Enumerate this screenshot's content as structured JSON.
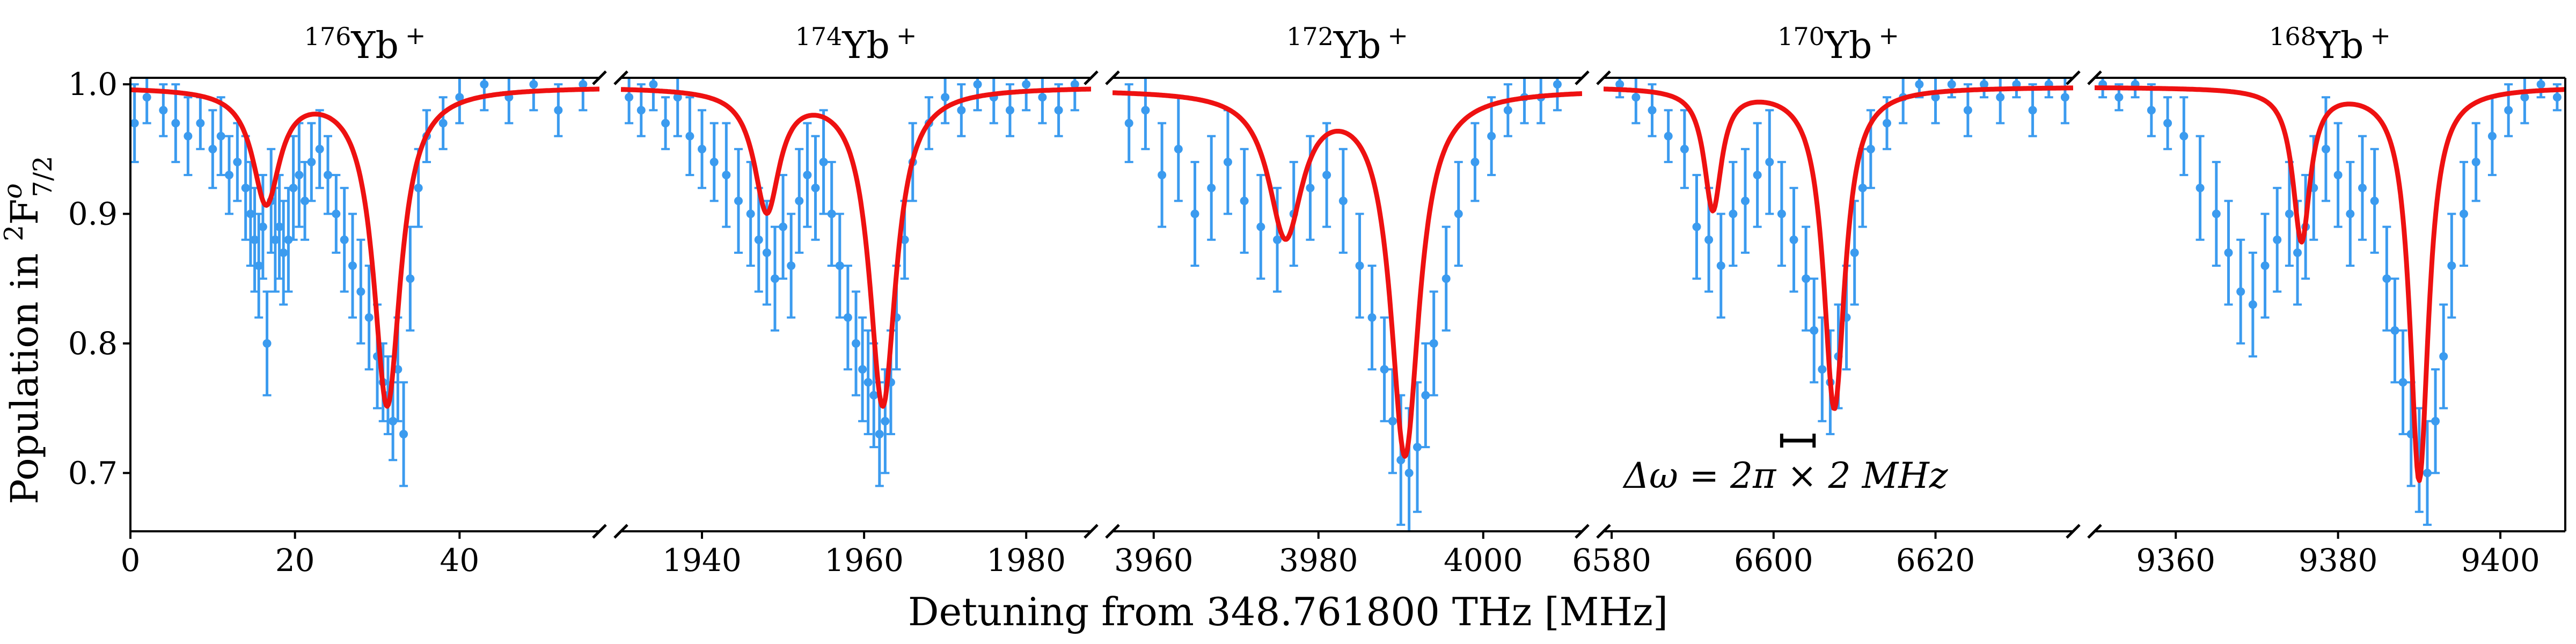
{
  "chart_data": {
    "type": "scatter",
    "xlabel": "Detuning from 348.761800 THz [MHz]",
    "ylabel": "Population in 2F°7/2",
    "ylabel_parts": {
      "pre": "Population in ",
      "sup_num": "2",
      "base": "F",
      "sup_o": "o",
      "sub": "7/2"
    },
    "ylim": [
      0.655,
      1.005
    ],
    "yticks": [
      0.7,
      0.8,
      0.9,
      1.0
    ],
    "ytick_labels": [
      "0.7",
      "0.8",
      "0.9",
      "1.0"
    ],
    "colors": {
      "data": "#3b9bef",
      "fit": "#ee1111",
      "scalebar": "#000000"
    },
    "annotation": {
      "text": "Δω = 2π × 2 MHz",
      "x_start": 6601,
      "x_end": 6605,
      "y": 0.725
    },
    "panels": [
      {
        "isotope": "176Yb +",
        "mass": "176",
        "ion": "Yb",
        "charge": "+",
        "xlim": [
          0,
          57
        ],
        "xticks": [
          0,
          20,
          40
        ],
        "xtick_labels": [
          "0",
          "20",
          "40"
        ],
        "fit": {
          "baseline": 0.998,
          "dips": [
            {
              "center": 16.5,
              "depth": 0.087,
              "width": 4.0
            },
            {
              "center": 31.2,
              "depth": 0.245,
              "width": 4.0
            }
          ]
        },
        "points": {
          "x": [
            0.5,
            2,
            4,
            5.5,
            7,
            8.5,
            10,
            11,
            12,
            13,
            14,
            14.6,
            15.1,
            15.6,
            16.1,
            16.6,
            17.1,
            17.6,
            18.1,
            18.6,
            19.2,
            19.8,
            20.5,
            21.2,
            22,
            23,
            24,
            25,
            26,
            27,
            28,
            29,
            30,
            30.7,
            31.3,
            31.9,
            32.5,
            33.2,
            34,
            35,
            36,
            38,
            40,
            43,
            46,
            49,
            52,
            55
          ],
          "y": [
            0.97,
            0.99,
            0.98,
            0.97,
            0.96,
            0.97,
            0.95,
            0.96,
            0.93,
            0.94,
            0.92,
            0.9,
            0.88,
            0.86,
            0.89,
            0.8,
            0.91,
            0.88,
            0.89,
            0.87,
            0.88,
            0.92,
            0.93,
            0.91,
            0.94,
            0.95,
            0.93,
            0.9,
            0.88,
            0.86,
            0.84,
            0.82,
            0.79,
            0.77,
            0.76,
            0.74,
            0.78,
            0.73,
            0.85,
            0.92,
            0.96,
            0.97,
            0.99,
            1.0,
            0.99,
            1.0,
            0.98,
            1.0
          ],
          "err": [
            0.03,
            0.02,
            0.02,
            0.03,
            0.03,
            0.02,
            0.03,
            0.03,
            0.03,
            0.03,
            0.04,
            0.04,
            0.04,
            0.04,
            0.04,
            0.04,
            0.04,
            0.04,
            0.04,
            0.04,
            0.04,
            0.04,
            0.04,
            0.03,
            0.03,
            0.03,
            0.03,
            0.03,
            0.04,
            0.04,
            0.04,
            0.04,
            0.04,
            0.03,
            0.03,
            0.03,
            0.04,
            0.04,
            0.04,
            0.03,
            0.02,
            0.02,
            0.02,
            0.02,
            0.02,
            0.02,
            0.02,
            0.02
          ]
        }
      },
      {
        "isotope": "174Yb +",
        "mass": "174",
        "ion": "Yb",
        "charge": "+",
        "xlim": [
          1930,
          1988
        ],
        "xticks": [
          1940,
          1960,
          1980
        ],
        "xtick_labels": [
          "1940",
          "1960",
          "1980"
        ],
        "fit": {
          "baseline": 0.998,
          "dips": [
            {
              "center": 1948,
              "depth": 0.093,
              "width": 3.8
            },
            {
              "center": 1962.3,
              "depth": 0.245,
              "width": 4.0
            }
          ]
        },
        "points": {
          "x": [
            1931,
            1932.5,
            1934,
            1935.5,
            1937,
            1938.5,
            1940,
            1941.5,
            1943,
            1944.5,
            1946,
            1947,
            1948,
            1949,
            1950,
            1951,
            1952,
            1953,
            1954,
            1955,
            1956,
            1957,
            1958,
            1959,
            1959.8,
            1960.5,
            1961.2,
            1961.9,
            1962.6,
            1963.3,
            1964,
            1965,
            1966,
            1968,
            1970,
            1972,
            1974,
            1976,
            1978,
            1980,
            1982,
            1984,
            1986
          ],
          "y": [
            0.99,
            0.98,
            1.0,
            0.97,
            0.99,
            0.96,
            0.95,
            0.94,
            0.93,
            0.91,
            0.9,
            0.88,
            0.87,
            0.85,
            0.89,
            0.86,
            0.91,
            0.93,
            0.92,
            0.94,
            0.9,
            0.86,
            0.82,
            0.8,
            0.78,
            0.77,
            0.76,
            0.73,
            0.74,
            0.77,
            0.82,
            0.88,
            0.94,
            0.97,
            0.99,
            0.98,
            1.0,
            0.99,
            0.98,
            1.0,
            0.99,
            0.98,
            1.0
          ],
          "err": [
            0.02,
            0.02,
            0.02,
            0.02,
            0.03,
            0.03,
            0.03,
            0.03,
            0.04,
            0.04,
            0.04,
            0.04,
            0.04,
            0.04,
            0.04,
            0.04,
            0.04,
            0.04,
            0.04,
            0.04,
            0.04,
            0.04,
            0.04,
            0.04,
            0.04,
            0.04,
            0.04,
            0.04,
            0.04,
            0.04,
            0.04,
            0.03,
            0.03,
            0.02,
            0.02,
            0.02,
            0.02,
            0.02,
            0.02,
            0.02,
            0.02,
            0.02,
            0.02
          ]
        }
      },
      {
        "isotope": "172Yb +",
        "mass": "172",
        "ion": "Yb",
        "charge": "+",
        "xlim": [
          3955,
          4012
        ],
        "xticks": [
          3960,
          3980,
          4000
        ],
        "xtick_labels": [
          "3960",
          "3980",
          "4000"
        ],
        "fit": {
          "baseline": 0.996,
          "dips": [
            {
              "center": 3976,
              "depth": 0.11,
              "width": 5.0
            },
            {
              "center": 3990.5,
              "depth": 0.28,
              "width": 4.2
            }
          ]
        },
        "points": {
          "x": [
            3957,
            3959,
            3961,
            3963,
            3965,
            3967,
            3969,
            3971,
            3973,
            3975,
            3977,
            3979,
            3981,
            3983,
            3985,
            3986.5,
            3988,
            3989,
            3990,
            3991,
            3992,
            3993,
            3994,
            3995.5,
            3997,
            3999,
            4001,
            4003,
            4005,
            4007,
            4009
          ],
          "y": [
            0.97,
            0.98,
            0.93,
            0.95,
            0.9,
            0.92,
            0.94,
            0.91,
            0.89,
            0.88,
            0.9,
            0.92,
            0.93,
            0.91,
            0.86,
            0.82,
            0.78,
            0.74,
            0.71,
            0.7,
            0.72,
            0.76,
            0.8,
            0.85,
            0.9,
            0.94,
            0.96,
            0.98,
            0.99,
            0.99,
            1.0
          ],
          "err": [
            0.03,
            0.03,
            0.04,
            0.04,
            0.04,
            0.04,
            0.04,
            0.04,
            0.04,
            0.04,
            0.04,
            0.04,
            0.04,
            0.04,
            0.04,
            0.04,
            0.04,
            0.04,
            0.05,
            0.05,
            0.05,
            0.04,
            0.04,
            0.04,
            0.04,
            0.03,
            0.03,
            0.02,
            0.02,
            0.02,
            0.02
          ]
        }
      },
      {
        "isotope": "170Yb +",
        "mass": "170",
        "ion": "Yb",
        "charge": "+",
        "xlim": [
          6579,
          6637
        ],
        "xticks": [
          6580,
          6600,
          6620
        ],
        "xtick_labels": [
          "6580",
          "6600",
          "6620"
        ],
        "fit": {
          "baseline": 0.998,
          "dips": [
            {
              "center": 6592.5,
              "depth": 0.093,
              "width": 2.6
            },
            {
              "center": 6607.5,
              "depth": 0.248,
              "width": 3.2
            }
          ]
        },
        "points": {
          "x": [
            6581,
            6583,
            6585,
            6587,
            6589,
            6590.5,
            6592,
            6593.5,
            6595,
            6596.5,
            6598,
            6599.5,
            6601,
            6602.5,
            6604,
            6605,
            6606,
            6607,
            6608,
            6609,
            6610,
            6611,
            6612,
            6614,
            6616,
            6618,
            6620,
            6622,
            6624,
            6626,
            6628,
            6630,
            6632,
            6634,
            6636
          ],
          "y": [
            1.0,
            0.99,
            0.98,
            0.96,
            0.95,
            0.89,
            0.88,
            0.86,
            0.9,
            0.91,
            0.93,
            0.94,
            0.9,
            0.88,
            0.85,
            0.81,
            0.78,
            0.77,
            0.79,
            0.82,
            0.87,
            0.92,
            0.95,
            0.97,
            0.99,
            1.0,
            0.99,
            1.0,
            0.98,
            1.0,
            0.99,
            1.0,
            0.98,
            1.0,
            0.99
          ],
          "err": [
            0.01,
            0.02,
            0.02,
            0.02,
            0.03,
            0.04,
            0.04,
            0.04,
            0.04,
            0.04,
            0.04,
            0.04,
            0.04,
            0.04,
            0.04,
            0.04,
            0.04,
            0.04,
            0.04,
            0.04,
            0.04,
            0.03,
            0.03,
            0.02,
            0.02,
            0.01,
            0.02,
            0.01,
            0.02,
            0.01,
            0.02,
            0.01,
            0.02,
            0.01,
            0.02
          ]
        }
      },
      {
        "isotope": "168Yb +",
        "mass": "168",
        "ion": "Yb",
        "charge": "+",
        "xlim": [
          9350,
          9408
        ],
        "xticks": [
          9360,
          9380,
          9400
        ],
        "xtick_labels": [
          "9360",
          "9380",
          "9400"
        ],
        "fit": {
          "baseline": 0.998,
          "dips": [
            {
              "center": 9375.5,
              "depth": 0.117,
              "width": 2.6
            },
            {
              "center": 9390,
              "depth": 0.303,
              "width": 2.8
            }
          ]
        },
        "points": {
          "x": [
            9351,
            9353,
            9355,
            9357,
            9359,
            9361,
            9363,
            9365,
            9366.5,
            9368,
            9369.5,
            9371,
            9372.5,
            9374,
            9375,
            9376,
            9377,
            9378.5,
            9380,
            9381.5,
            9383,
            9384.5,
            9386,
            9387,
            9388,
            9389,
            9390,
            9391,
            9392,
            9393,
            9394,
            9395.5,
            9397,
            9399,
            9401,
            9403,
            9405,
            9407
          ],
          "y": [
            1.0,
            0.99,
            1.0,
            0.98,
            0.97,
            0.96,
            0.92,
            0.9,
            0.87,
            0.84,
            0.83,
            0.86,
            0.88,
            0.9,
            0.87,
            0.89,
            0.92,
            0.95,
            0.93,
            0.9,
            0.92,
            0.91,
            0.85,
            0.81,
            0.77,
            0.73,
            0.71,
            0.7,
            0.74,
            0.79,
            0.86,
            0.9,
            0.94,
            0.96,
            0.98,
            0.99,
            1.0,
            0.99
          ],
          "err": [
            0.01,
            0.01,
            0.01,
            0.02,
            0.02,
            0.03,
            0.04,
            0.04,
            0.04,
            0.04,
            0.04,
            0.04,
            0.04,
            0.04,
            0.04,
            0.04,
            0.04,
            0.04,
            0.04,
            0.04,
            0.04,
            0.04,
            0.04,
            0.04,
            0.04,
            0.04,
            0.04,
            0.04,
            0.04,
            0.04,
            0.04,
            0.04,
            0.03,
            0.03,
            0.02,
            0.02,
            0.01,
            0.01
          ]
        }
      }
    ]
  }
}
